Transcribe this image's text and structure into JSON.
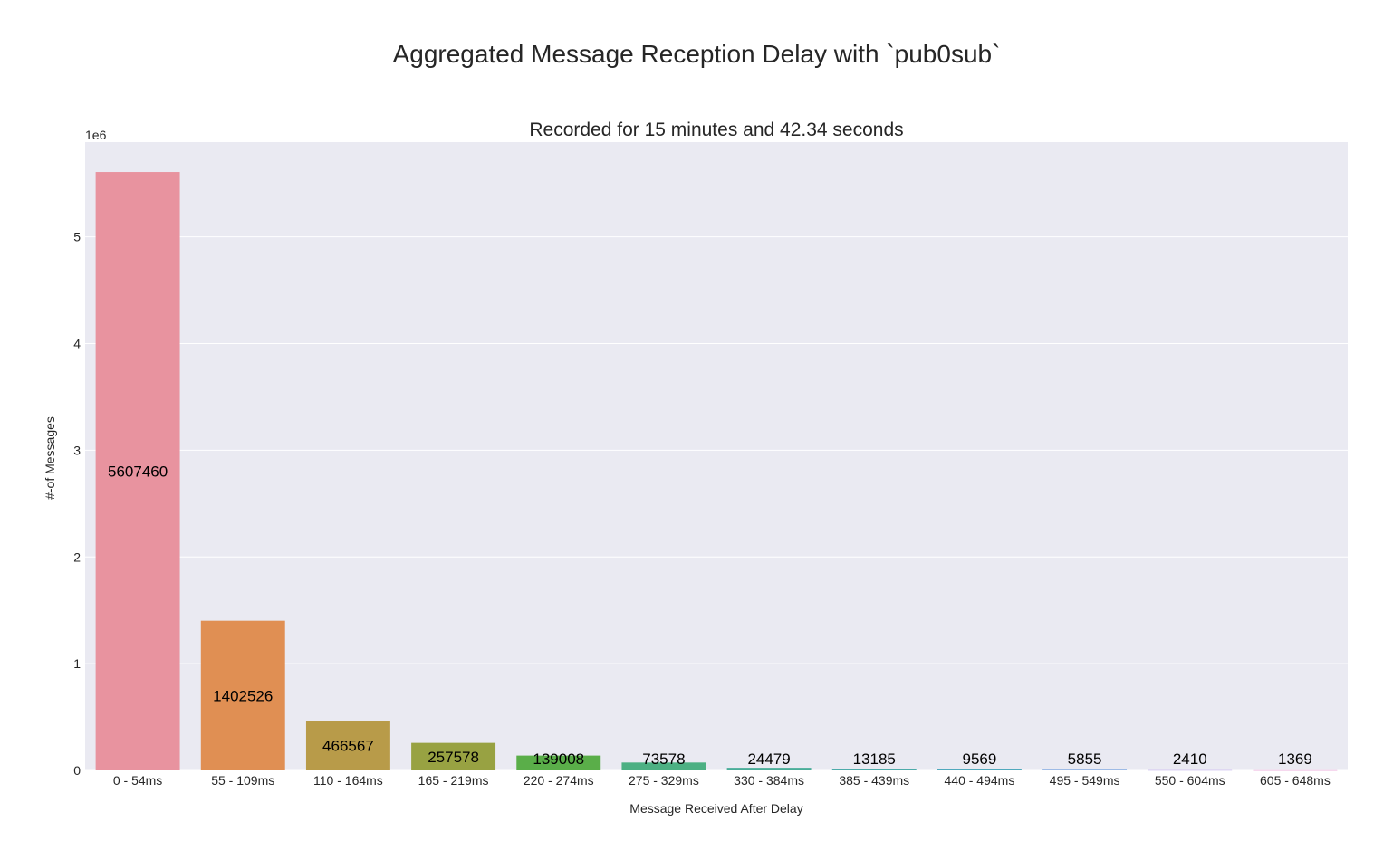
{
  "suptitle": "Aggregated Message Reception Delay with `pub0sub`",
  "chart_data": {
    "type": "bar",
    "title": "Recorded for 15 minutes and 42.34 seconds",
    "xlabel": "Message Received After Delay",
    "ylabel": "#-of Messages",
    "y_offset_label": "1e6",
    "ylim": [
      0,
      5887833
    ],
    "yticks": [
      0,
      1000000,
      2000000,
      3000000,
      4000000,
      5000000
    ],
    "ytick_labels": [
      "0",
      "1",
      "2",
      "3",
      "4",
      "5"
    ],
    "grid": true,
    "background": "#eaeaf2",
    "categories": [
      "0 - 54ms",
      "55 - 109ms",
      "110 - 164ms",
      "165 - 219ms",
      "220 - 274ms",
      "275 - 329ms",
      "330 - 384ms",
      "385 - 439ms",
      "440 - 494ms",
      "495 - 549ms",
      "550 - 604ms",
      "605 - 648ms"
    ],
    "values": [
      5607460,
      1402526,
      466567,
      257578,
      139008,
      73578,
      24479,
      13185,
      9569,
      5855,
      2410,
      1369
    ],
    "colors": [
      "#e8939f",
      "#e08f53",
      "#b89b49",
      "#98a242",
      "#5aae49",
      "#4cb083",
      "#4aad99",
      "#4dabaa",
      "#51a9bd",
      "#7da6e0",
      "#b49de9",
      "#e48ecd"
    ]
  }
}
